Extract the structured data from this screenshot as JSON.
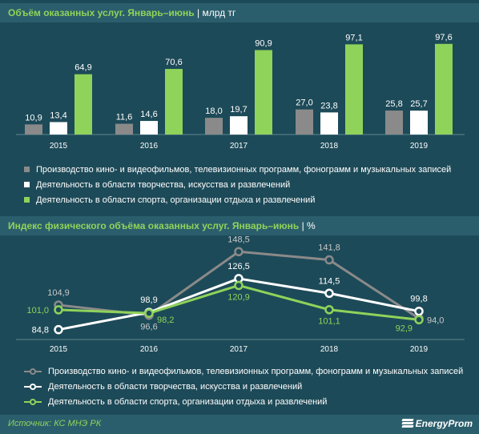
{
  "chart_data": [
    {
      "type": "bar",
      "title": "Объём оказанных услуг. Январь–июнь",
      "unit": "млрд тг",
      "categories": [
        "2015",
        "2016",
        "2017",
        "2018",
        "2019"
      ],
      "ylim": [
        0,
        100
      ],
      "grid": false,
      "legend_position": "bottom",
      "series": [
        {
          "name": "Производство кино- и видеофильмов, телевизионных программ, фонограмм и музыкальных записей",
          "values": [
            10.9,
            11.6,
            18.0,
            27.0,
            25.8
          ],
          "labels": [
            "10,9",
            "11,6",
            "18,0",
            "27,0",
            "25,8"
          ],
          "color": "#8a8a8a"
        },
        {
          "name": "Деятельность в области творчества, искусства и развлечений",
          "values": [
            13.4,
            14.6,
            19.7,
            23.8,
            25.7
          ],
          "labels": [
            "13,4",
            "14,6",
            "19,7",
            "23,8",
            "25,7"
          ],
          "color": "#ffffff"
        },
        {
          "name": "Деятельность в области спорта, организации отдыха и развлечений",
          "values": [
            64.9,
            70.6,
            90.9,
            97.1,
            97.6
          ],
          "labels": [
            "64,9",
            "70,6",
            "90,9",
            "97,1",
            "97,6"
          ],
          "color": "#8fd35a"
        }
      ]
    },
    {
      "type": "line",
      "title": "Индекс физического объёма оказанных услуг. Январь–июнь",
      "unit": "%",
      "categories": [
        "2015",
        "2016",
        "2017",
        "2018",
        "2019"
      ],
      "ylim": [
        80,
        150
      ],
      "grid": false,
      "legend_position": "bottom",
      "series": [
        {
          "name": "Производство кино- и видеофильмов, телевизионных программ, фонограмм и музыкальных записей",
          "values": [
            104.9,
            96.6,
            148.5,
            141.8,
            94.0
          ],
          "labels": [
            "104,9",
            "96,6",
            "148,5",
            "141,8",
            "94,0"
          ],
          "color": "#8a8a8a"
        },
        {
          "name": "Деятельность в области творчества, искусства и развлечений",
          "values": [
            84.8,
            98.9,
            126.5,
            114.5,
            99.8
          ],
          "labels": [
            "84,8",
            "98,9",
            "126,5",
            "114,5",
            "99,8"
          ],
          "color": "#ffffff"
        },
        {
          "name": "Деятельность в области спорта, организации отдыха и развлечений",
          "values": [
            101.0,
            98.2,
            120.9,
            101.1,
            92.9
          ],
          "labels": [
            "101,0",
            "98,2",
            "120,9",
            "101,1",
            "92,9"
          ],
          "color": "#8fd35a"
        }
      ]
    }
  ],
  "footer": {
    "source": "Источник: КС МНЭ РК",
    "brand": "EnergyProm"
  }
}
